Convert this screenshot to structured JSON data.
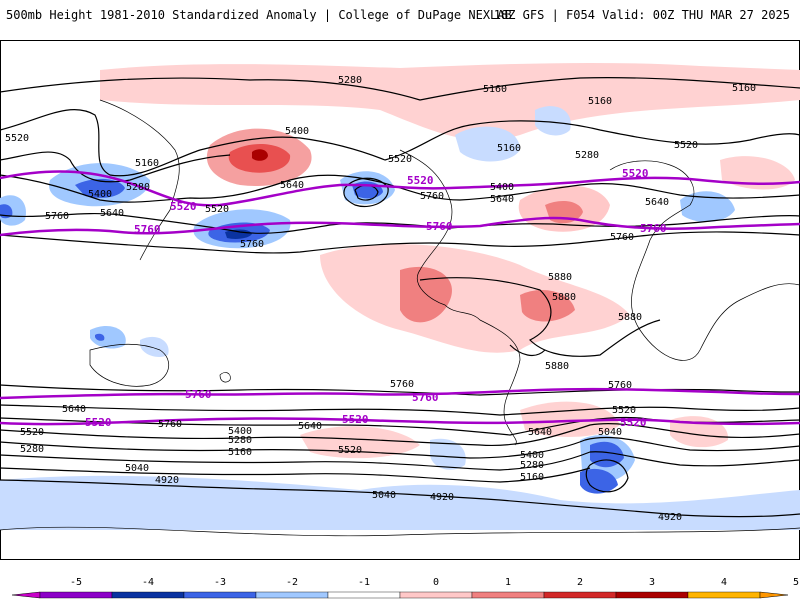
{
  "header": {
    "title_left": "500mb Height 1981-2010 Standardized Anomaly | College of DuPage NEXLAB",
    "title_right": "18Z GFS | F054 Valid: 00Z THU MAR 27 2025"
  },
  "colors": {
    "reference_contour": "#a400c8",
    "height_contour": "#000000",
    "coastline": "#000000"
  },
  "reference_contours": [
    {
      "value": "5520",
      "labels": [
        "5520",
        "5520",
        "5520",
        "5520",
        "5520",
        "5520"
      ]
    },
    {
      "value": "5760",
      "labels": [
        "5760",
        "5760",
        "5760",
        "5760",
        "5760"
      ]
    }
  ],
  "height_contour_labels": [
    "5280",
    "5160",
    "5160",
    "5160",
    "5520",
    "5400",
    "5160",
    "5520",
    "5280",
    "5160",
    "5520",
    "5400",
    "5640",
    "5520",
    "5280",
    "5760",
    "5640",
    "5520",
    "5760",
    "5640",
    "5400",
    "5640",
    "5760",
    "5760",
    "5880",
    "5880",
    "5880",
    "5880",
    "5760",
    "5760",
    "5640",
    "5520",
    "5520",
    "5400",
    "5280",
    "5160",
    "5040",
    "4920",
    "5640",
    "5520",
    "5400",
    "5280",
    "5160",
    "5040",
    "4920",
    "5640",
    "5520",
    "5040",
    "5400",
    "5280",
    "5160",
    "4920",
    "5760",
    "5520"
  ],
  "colorbar": {
    "ticks": [
      "-5",
      "-4",
      "-3",
      "-2",
      "-1",
      "0",
      "1",
      "2",
      "3",
      "4",
      "5"
    ],
    "colors": [
      "#c800c8",
      "#8c00c8",
      "#0a32a0",
      "#3c64e6",
      "#a0c8ff",
      "#ffffff",
      "#ffc8c8",
      "#f08080",
      "#d22828",
      "#aa0000",
      "#ffb400",
      "#ff9600"
    ]
  }
}
